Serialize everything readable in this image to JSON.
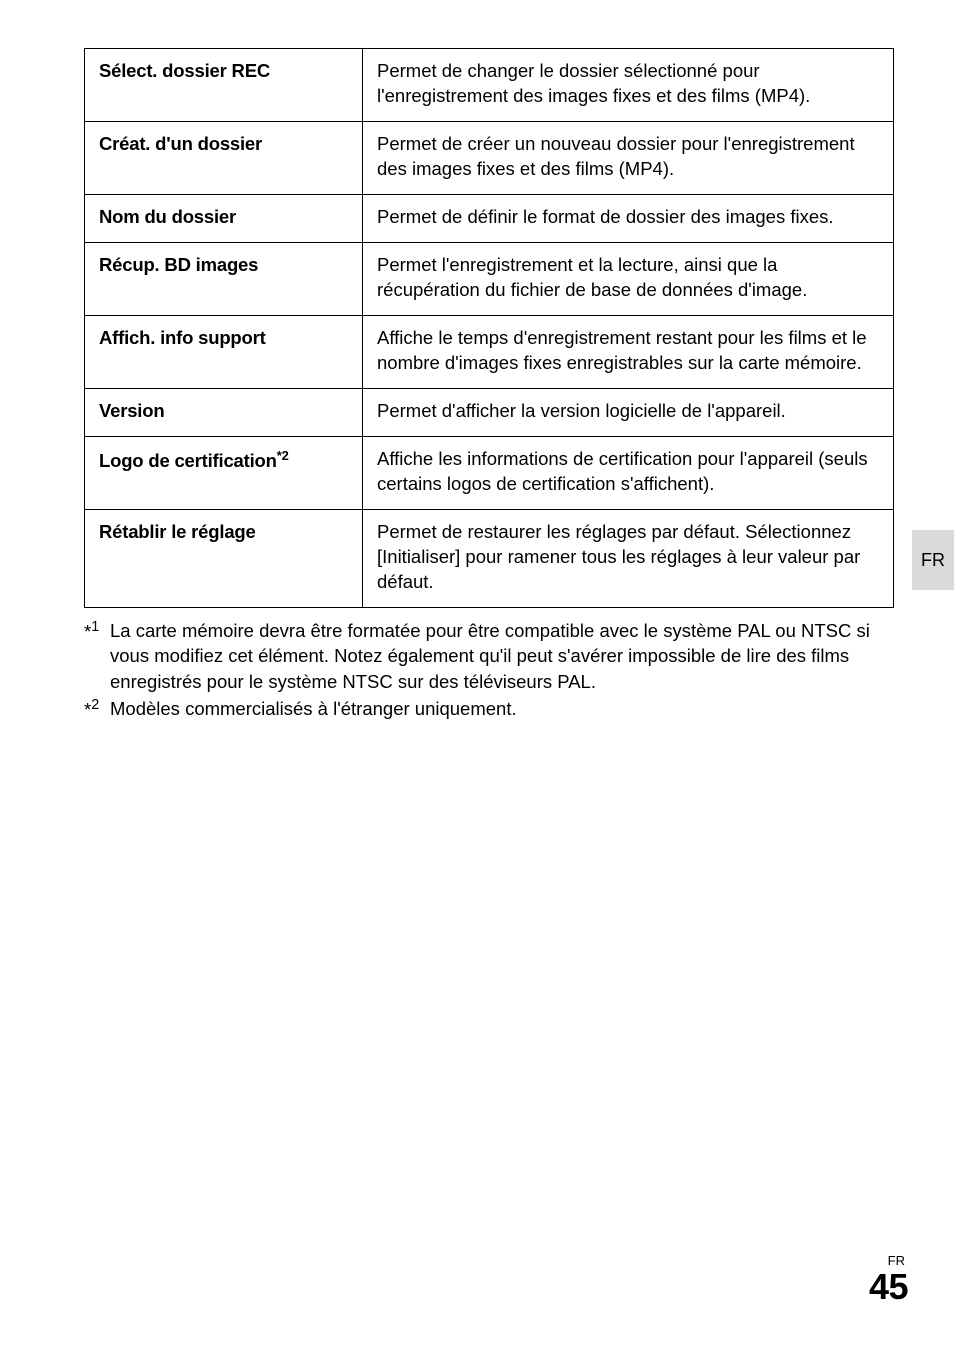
{
  "table": {
    "rows": [
      {
        "label": "Sélect. dossier REC",
        "desc": "Permet de changer le dossier sélectionné pour l'enregistrement des images fixes et des films (MP4)."
      },
      {
        "label": "Créat. d'un dossier",
        "desc": "Permet de créer un nouveau dossier pour l'enregistrement des images fixes et des films (MP4)."
      },
      {
        "label": "Nom du dossier",
        "desc": "Permet de définir le format de dossier des images fixes."
      },
      {
        "label": "Récup. BD images",
        "desc": "Permet l'enregistrement et la lecture, ainsi que la récupération du fichier de base de données d'image."
      },
      {
        "label": "Affich. info support",
        "desc": "Affiche le temps d'enregistrement restant pour les films et le nombre d'images fixes enregistrables sur la carte mémoire."
      },
      {
        "label": "Version",
        "desc": "Permet d'afficher la version logicielle de l'appareil."
      },
      {
        "label_html": "Logo de certification<sup>*2</sup>",
        "desc": "Affiche les informations de certification pour l'appareil (seuls certains logos de certification s'affichent)."
      },
      {
        "label": "Rétablir le réglage",
        "desc": "Permet de restaurer les réglages par défaut. Sélectionnez [Initialiser] pour ramener tous les réglages à leur valeur par défaut."
      }
    ]
  },
  "footnotes": [
    {
      "mark_html": "*<sup>1</sup>",
      "text": "La carte mémoire devra être formatée pour être compatible avec le système PAL ou NTSC si vous modifiez cet élément. Notez également qu'il peut s'avérer impossible de lire des films enregistrés pour le système NTSC sur des téléviseurs PAL."
    },
    {
      "mark_html": "*<sup>2</sup>",
      "text": "Modèles commercialisés à l'étranger uniquement."
    }
  ],
  "side_tab": "FR",
  "footer": {
    "small": "FR",
    "big": "45"
  }
}
